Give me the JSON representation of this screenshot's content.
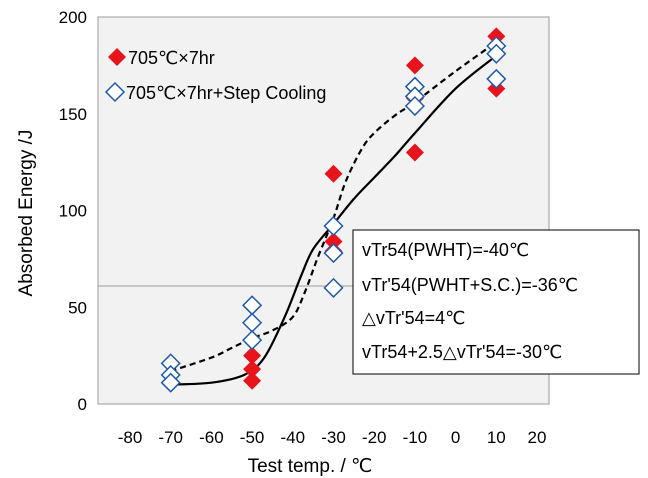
{
  "chart_data": {
    "type": "scatter",
    "xlabel": "Test temp. / ℃",
    "ylabel": "Absorbed Energy /J",
    "xlim": [
      -80,
      20
    ],
    "ylim": [
      0,
      200
    ],
    "x_ticks": [
      "-80",
      "-70",
      "-60",
      "-50",
      "-40",
      "-30",
      "-20",
      "-10",
      "0",
      "10",
      "20"
    ],
    "y_ticks": [
      "0",
      "50",
      "100",
      "150",
      "200"
    ],
    "grid": false,
    "legend_position": "top-left",
    "reference_line_y": 61,
    "series": [
      {
        "name": "705℃×7hr",
        "marker": "filled-diamond",
        "color": "#e8141b",
        "points": [
          [
            -50,
            25
          ],
          [
            -50,
            18
          ],
          [
            -50,
            12
          ],
          [
            -30,
            119
          ],
          [
            -30,
            84
          ],
          [
            -30,
            79
          ],
          [
            -10,
            175
          ],
          [
            -10,
            158
          ],
          [
            -10,
            130
          ],
          [
            10,
            190
          ],
          [
            10,
            163
          ]
        ]
      },
      {
        "name": "705℃×7hr+Step Cooling",
        "marker": "open-diamond",
        "color": "#1e5aa8",
        "points": [
          [
            -70,
            21
          ],
          [
            -70,
            15
          ],
          [
            -70,
            11
          ],
          [
            -50,
            51
          ],
          [
            -50,
            42
          ],
          [
            -50,
            33
          ],
          [
            -30,
            92
          ],
          [
            -30,
            78
          ],
          [
            -30,
            60
          ],
          [
            -10,
            164
          ],
          [
            -10,
            159
          ],
          [
            -10,
            154
          ],
          [
            10,
            185
          ],
          [
            10,
            181
          ],
          [
            10,
            168
          ]
        ]
      }
    ],
    "curves": [
      {
        "series": "705℃×7hr",
        "style": "solid",
        "points": [
          [
            -70,
            10
          ],
          [
            -60,
            11
          ],
          [
            -52,
            15
          ],
          [
            -47,
            24
          ],
          [
            -42,
            45
          ],
          [
            -38,
            66
          ],
          [
            -35,
            80
          ],
          [
            -30,
            93
          ],
          [
            -25,
            106
          ],
          [
            -20,
            117
          ],
          [
            -15,
            128
          ],
          [
            -10,
            140
          ],
          [
            0,
            163
          ],
          [
            10,
            180
          ]
        ]
      },
      {
        "series": "705℃×7hr+Step Cooling",
        "style": "dashed",
        "points": [
          [
            -70,
            17
          ],
          [
            -60,
            24
          ],
          [
            -55,
            29
          ],
          [
            -50,
            34
          ],
          [
            -45,
            38
          ],
          [
            -40,
            45
          ],
          [
            -37,
            58
          ],
          [
            -34,
            75
          ],
          [
            -30,
            96
          ],
          [
            -27,
            115
          ],
          [
            -23,
            132
          ],
          [
            -20,
            140
          ],
          [
            -15,
            149
          ],
          [
            -10,
            156
          ],
          [
            0,
            172
          ],
          [
            10,
            187
          ]
        ]
      }
    ],
    "annotation": [
      "vTr54(PWHT)=-40℃",
      "vTr'54(PWHT+S.C.)=-36℃",
      "△vTr'54=4℃",
      "vTr54+2.5△vTr'54=-30℃"
    ]
  }
}
